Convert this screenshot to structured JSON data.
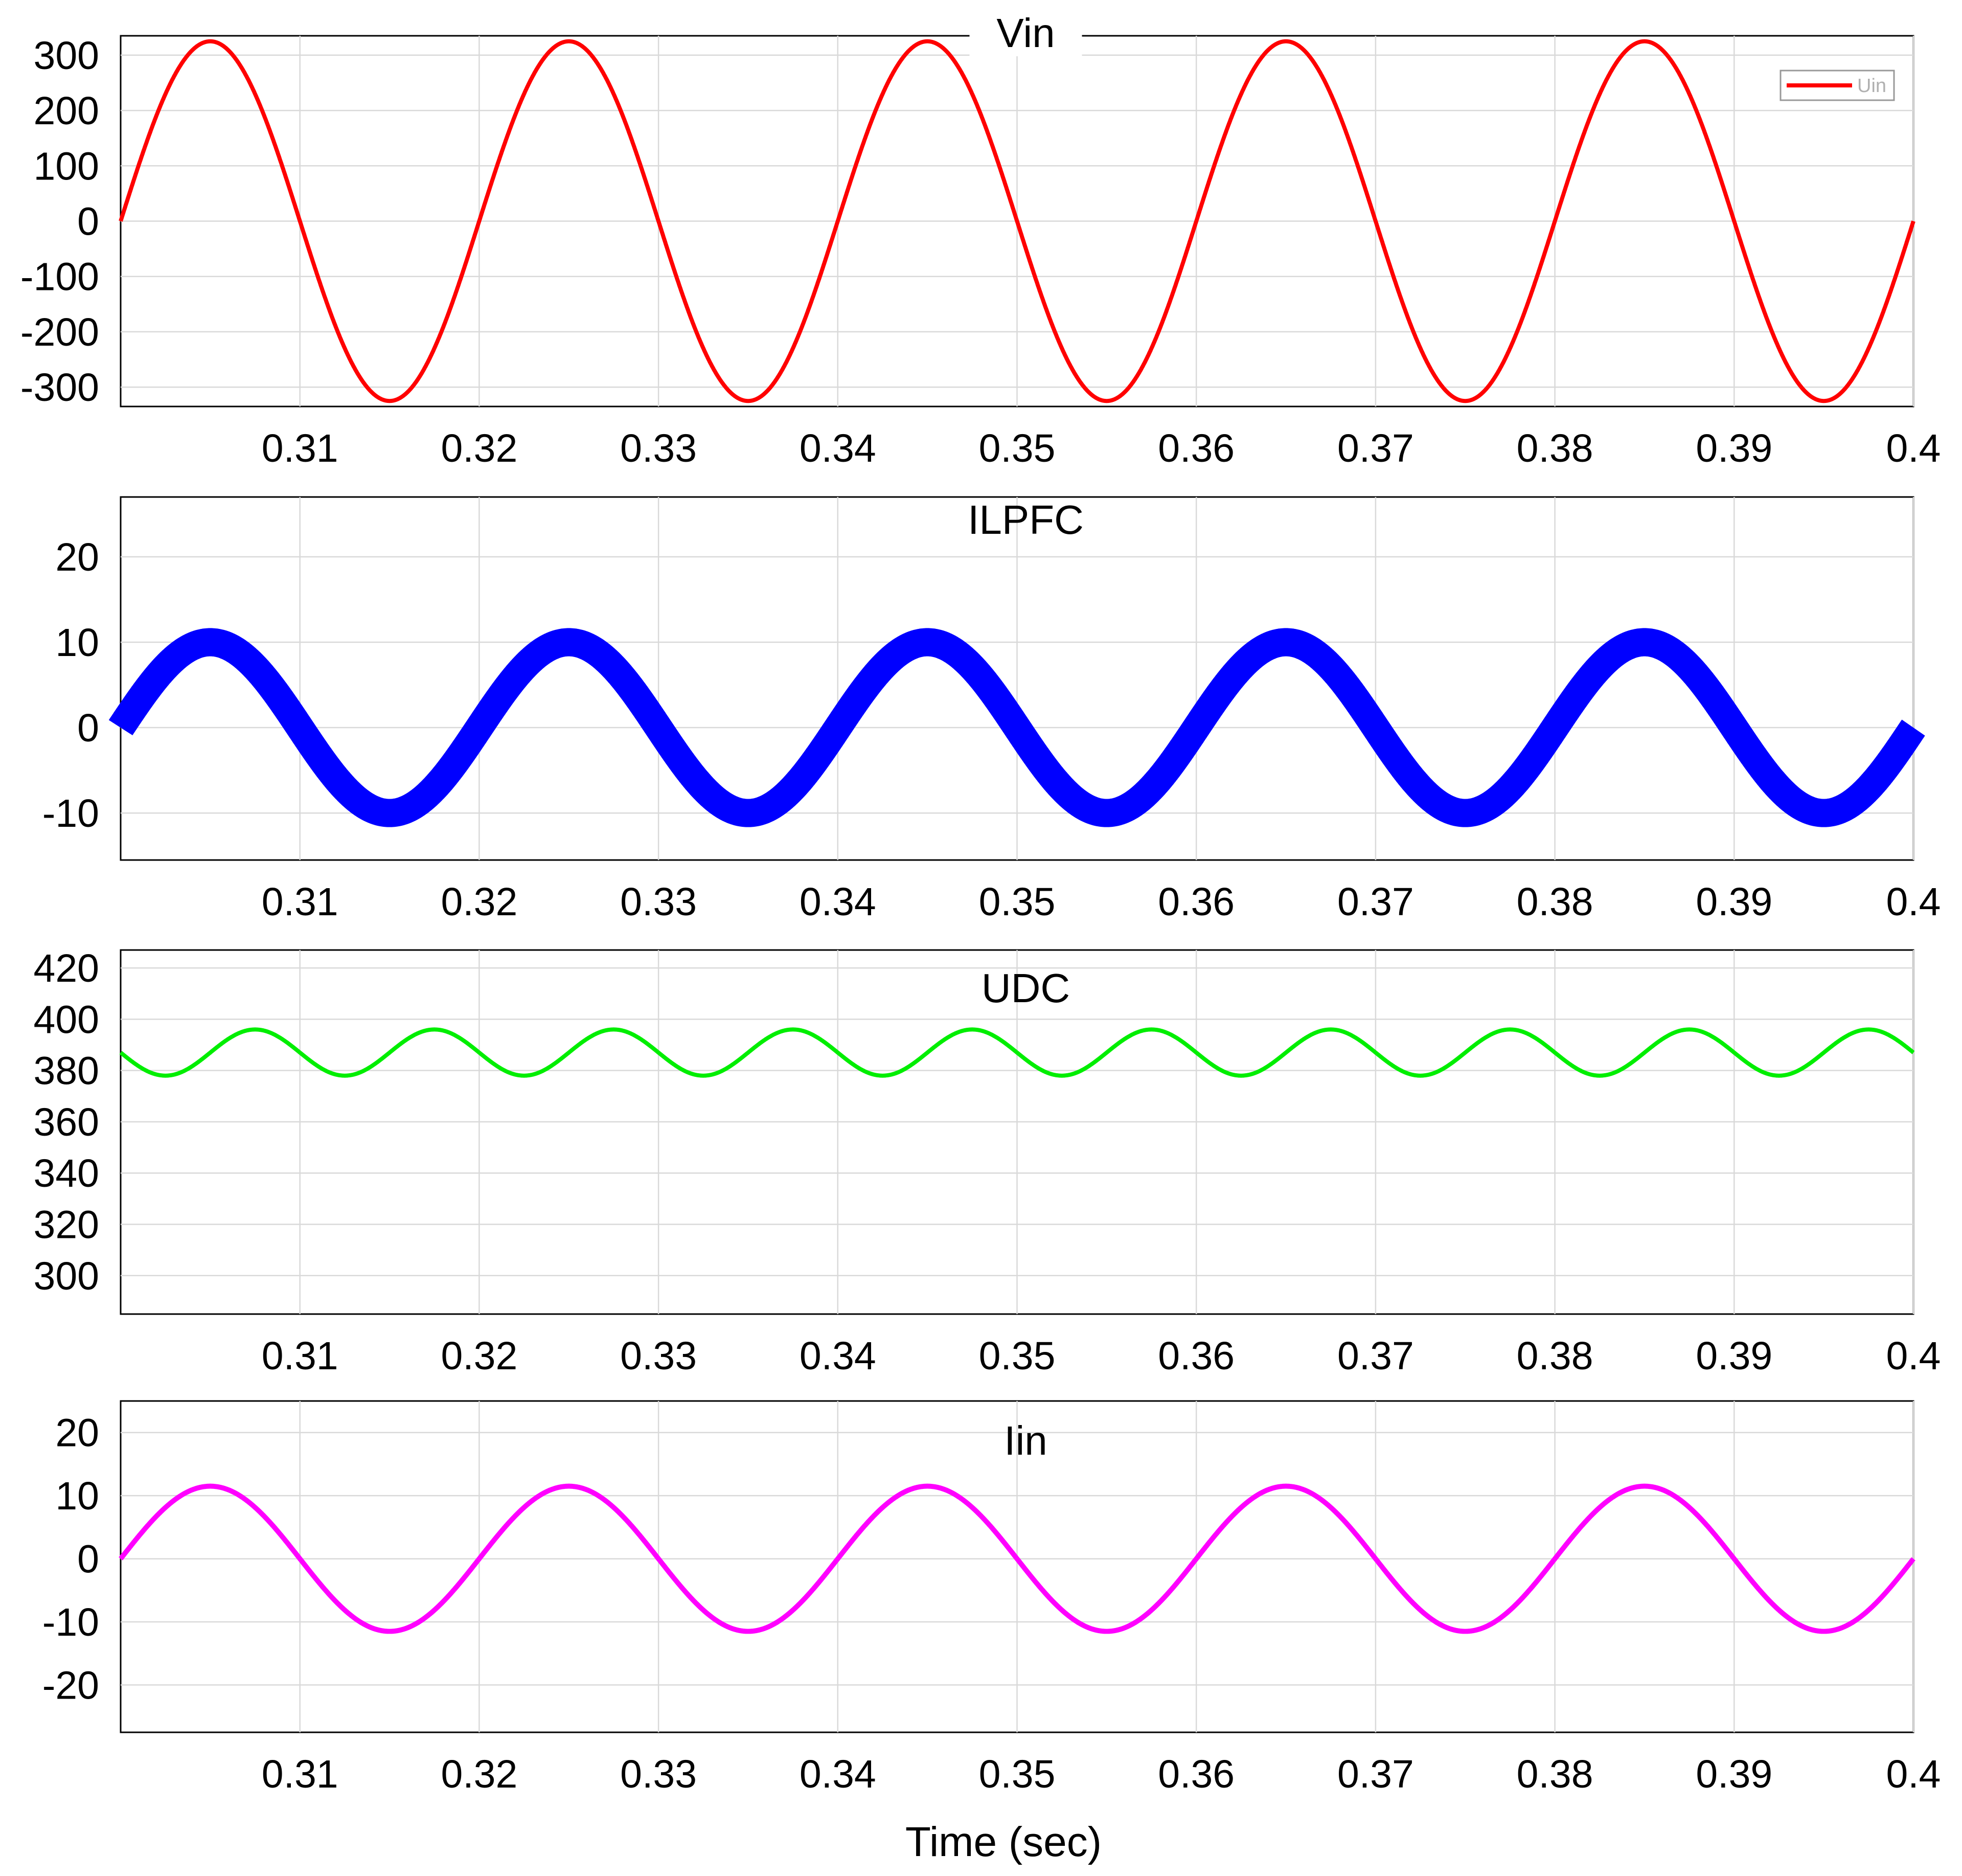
{
  "figure": {
    "xlabel": "Time (sec)"
  },
  "chart_data": [
    {
      "type": "line",
      "title": "Vin",
      "xlim": [
        0.3,
        0.4
      ],
      "ylim": [
        -335,
        335
      ],
      "grid": true,
      "x_ticks": [
        0.31,
        0.32,
        0.33,
        0.34,
        0.35,
        0.36,
        0.37,
        0.38,
        0.39,
        0.4
      ],
      "y_ticks": [
        -300,
        -200,
        -100,
        0,
        100,
        200,
        300
      ],
      "legend": {
        "position": "top-right",
        "entries": [
          "Uin"
        ]
      },
      "series": [
        {
          "name": "Uin",
          "color": "#ff0000",
          "shape": "sine",
          "amplitude": 325,
          "frequency_hz": 50,
          "phase_zero_at": 0.3,
          "offset": 0,
          "ripple": 0
        }
      ]
    },
    {
      "type": "line",
      "title": "ILPFC",
      "xlim": [
        0.3,
        0.4
      ],
      "ylim": [
        -15.5,
        27
      ],
      "grid": true,
      "x_ticks": [
        0.31,
        0.32,
        0.33,
        0.34,
        0.35,
        0.36,
        0.37,
        0.38,
        0.39,
        0.4
      ],
      "y_ticks": [
        -10,
        0,
        10,
        20
      ],
      "series": [
        {
          "color": "#0000ff",
          "shape": "sine",
          "amplitude": 10,
          "frequency_hz": 50,
          "phase_zero_at": 0.3,
          "offset": 0,
          "ripple": 3.3
        }
      ]
    },
    {
      "type": "line",
      "title": "UDC",
      "xlim": [
        0.3,
        0.4
      ],
      "ylim": [
        285,
        427
      ],
      "grid": true,
      "x_ticks": [
        0.31,
        0.32,
        0.33,
        0.34,
        0.35,
        0.36,
        0.37,
        0.38,
        0.39,
        0.4
      ],
      "y_ticks": [
        300,
        320,
        340,
        360,
        380,
        400,
        420
      ],
      "series": [
        {
          "color": "#00ee00",
          "shape": "ripple",
          "mean": 387,
          "amplitude": 9,
          "frequency_hz": 100,
          "peak_at": 0.3075,
          "offset": 0,
          "ripple": 0
        }
      ]
    },
    {
      "type": "line",
      "title": "Iin",
      "xlim": [
        0.3,
        0.4
      ],
      "ylim": [
        -27.5,
        25
      ],
      "grid": true,
      "x_ticks": [
        0.31,
        0.32,
        0.33,
        0.34,
        0.35,
        0.36,
        0.37,
        0.38,
        0.39,
        0.4
      ],
      "y_ticks": [
        -20,
        -10,
        0,
        10,
        20
      ],
      "series": [
        {
          "color": "#ff00ff",
          "shape": "sine",
          "amplitude": 11.5,
          "frequency_hz": 50,
          "phase_zero_at": 0.3,
          "offset": 0,
          "ripple": 0.8
        }
      ]
    }
  ]
}
